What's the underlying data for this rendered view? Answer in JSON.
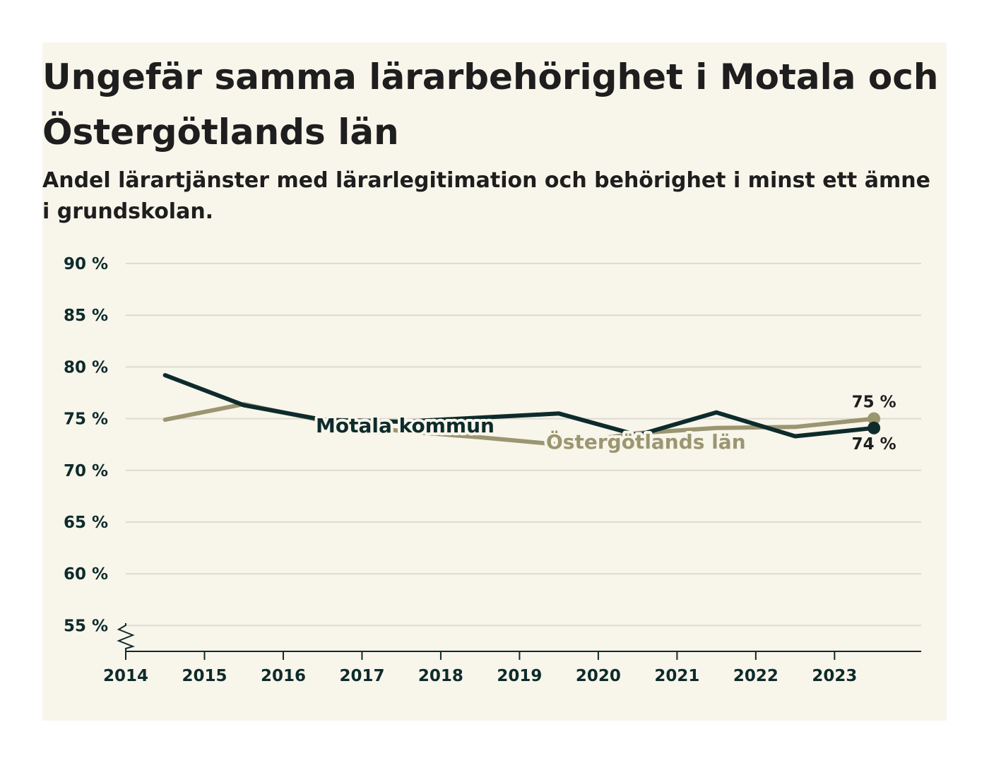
{
  "title": "Ungefär samma lärarbehörighet i Motala och Östergötlands län",
  "subtitle": "Andel lärartjänster med lärarlegitimation och behörighet i minst ett ämne i grundskolan.",
  "colors": {
    "background": "#f8f5eb",
    "motala": "#0d2b2b",
    "lan": "#9b9670",
    "grid": "#dddbd2",
    "axis": "#0d2b2b"
  },
  "chart_data": {
    "type": "line",
    "title": "Ungefär samma lärarbehörighet i Motala och Östergötlands län",
    "subtitle": "Andel lärartjänster med lärarlegitimation och behörighet i minst ett ämne i grundskolan.",
    "xlabel": "",
    "ylabel": "",
    "x": [
      2014.5,
      2015.5,
      2016.5,
      2017.5,
      2018.5,
      2019.5,
      2020.5,
      2021.5,
      2022.5,
      2023.5
    ],
    "xticks": [
      "2014",
      "2015",
      "2016",
      "2017",
      "2018",
      "2019",
      "2020",
      "2021",
      "2022",
      "2023"
    ],
    "xlim": [
      2014,
      2024.1
    ],
    "ylim": [
      52.5,
      90
    ],
    "yticks": [
      55,
      60,
      65,
      70,
      75,
      80,
      85,
      90
    ],
    "ytick_labels": [
      "55 %",
      "60 %",
      "65 %",
      "70 %",
      "75 %",
      "80 %",
      "85 %",
      "90 %"
    ],
    "axis_break": true,
    "grid": true,
    "series": [
      {
        "name": "Motala kommun",
        "label": "Motala kommun",
        "values": [
          79.2,
          76.3,
          74.9,
          74.7,
          75.1,
          75.5,
          73.4,
          75.6,
          73.3,
          74.1
        ],
        "end_label": "74 %"
      },
      {
        "name": "Östergötlands län",
        "label": "Östergötlands län",
        "values": [
          74.9,
          76.4,
          74.8,
          73.8,
          73.2,
          72.5,
          73.6,
          74.1,
          74.2,
          75.0
        ],
        "end_label": "75 %"
      }
    ]
  }
}
